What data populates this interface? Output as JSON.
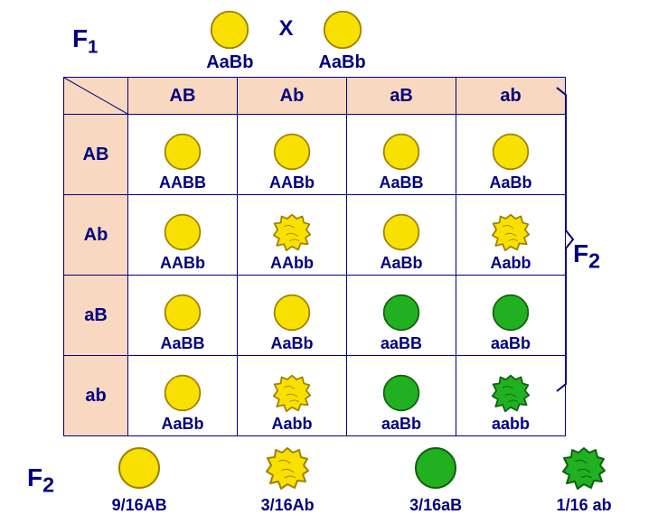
{
  "generation_labels": {
    "f1": "F",
    "f1_sub": "1",
    "f2": "F",
    "f2_sub": "2"
  },
  "cross_symbol": "X",
  "parents": [
    {
      "genotype": "AaBb",
      "shape": "round",
      "color": "yellow"
    },
    {
      "genotype": "AaBb",
      "shape": "round",
      "color": "yellow"
    }
  ],
  "gametes": [
    "AB",
    "Ab",
    "aB",
    "ab"
  ],
  "colors": {
    "yellow_fill": "#f8e000",
    "yellow_stroke": "#a08000",
    "green_fill": "#20b020",
    "green_stroke": "#106010",
    "header_bg": "#f8d8c0",
    "border": "#000080",
    "text": "#000080",
    "background": "#ffffff"
  },
  "grid": [
    [
      {
        "genotype": "AABB",
        "shape": "round",
        "color": "yellow"
      },
      {
        "genotype": "AABb",
        "shape": "round",
        "color": "yellow"
      },
      {
        "genotype": "AaBB",
        "shape": "round",
        "color": "yellow"
      },
      {
        "genotype": "AaBb",
        "shape": "round",
        "color": "yellow"
      }
    ],
    [
      {
        "genotype": "AABb",
        "shape": "round",
        "color": "yellow"
      },
      {
        "genotype": "AAbb",
        "shape": "wrinkled",
        "color": "yellow"
      },
      {
        "genotype": "AaBb",
        "shape": "round",
        "color": "yellow"
      },
      {
        "genotype": "Aabb",
        "shape": "wrinkled",
        "color": "yellow"
      }
    ],
    [
      {
        "genotype": "AaBB",
        "shape": "round",
        "color": "yellow"
      },
      {
        "genotype": "AaBb",
        "shape": "round",
        "color": "yellow"
      },
      {
        "genotype": "aaBB",
        "shape": "round",
        "color": "green"
      },
      {
        "genotype": "aaBb",
        "shape": "round",
        "color": "green"
      }
    ],
    [
      {
        "genotype": "AaBb",
        "shape": "round",
        "color": "yellow"
      },
      {
        "genotype": "Aabb",
        "shape": "wrinkled",
        "color": "yellow"
      },
      {
        "genotype": "aaBb",
        "shape": "round",
        "color": "green"
      },
      {
        "genotype": "aabb",
        "shape": "wrinkled",
        "color": "green"
      }
    ]
  ],
  "summary": [
    {
      "ratio": "9/16AB",
      "shape": "round",
      "color": "yellow"
    },
    {
      "ratio": "3/16Ab",
      "shape": "wrinkled",
      "color": "yellow"
    },
    {
      "ratio": "3/16aB",
      "shape": "round",
      "color": "green"
    },
    {
      "ratio": "1/16 ab",
      "shape": "wrinkled",
      "color": "green"
    }
  ],
  "shape_sizes": {
    "parent": 46,
    "cell": 44,
    "summary": 50
  }
}
